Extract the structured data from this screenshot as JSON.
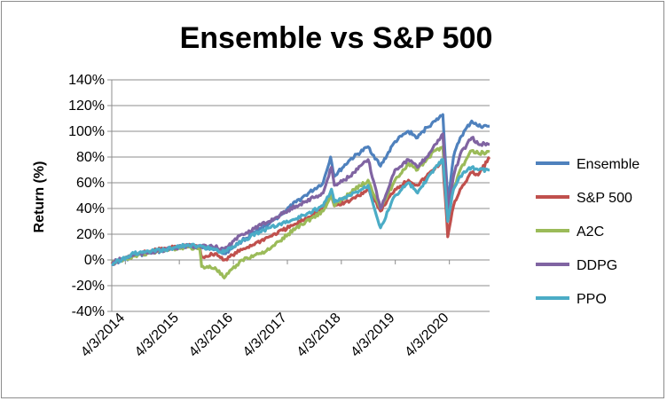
{
  "chart_data": {
    "type": "line",
    "title": "Ensemble vs S&P 500",
    "xlabel": "",
    "ylabel": "Return (%)",
    "ylim": [
      -40,
      140
    ],
    "yticks": [
      -40,
      -20,
      0,
      20,
      40,
      60,
      80,
      100,
      120,
      140
    ],
    "ytick_labels": [
      "-40%",
      "-20%",
      "0%",
      "20%",
      "40%",
      "60%",
      "80%",
      "100%",
      "120%",
      "140%"
    ],
    "xlim": [
      "2014-01-01",
      "2020-12-31"
    ],
    "xticks": [
      "2014-04-03",
      "2015-04-03",
      "2016-04-03",
      "2017-04-03",
      "2018-04-03",
      "2019-04-03",
      "2020-04-03"
    ],
    "xtick_labels": [
      "4/3/2014",
      "4/3/2015",
      "4/3/2016",
      "4/3/2017",
      "4/3/2018",
      "4/3/2019",
      "4/3/2020"
    ],
    "grid": "horizontal",
    "legend_position": "right",
    "series": [
      {
        "name": "Ensemble",
        "color": "#4F81BD",
        "x": [
          "2014-01-01",
          "2014-06-01",
          "2015-01-01",
          "2015-06-01",
          "2015-12-01",
          "2016-02-01",
          "2016-06-01",
          "2016-12-01",
          "2017-06-01",
          "2017-12-01",
          "2018-01-20",
          "2018-02-15",
          "2018-06-01",
          "2018-10-01",
          "2018-12-24",
          "2019-04-01",
          "2019-07-01",
          "2019-09-01",
          "2019-11-01",
          "2019-12-31",
          "2020-02-19",
          "2020-03-23",
          "2020-05-01",
          "2020-06-15",
          "2020-09-01",
          "2020-10-15",
          "2020-12-31"
        ],
        "y": [
          -3,
          3,
          8,
          11,
          9,
          5,
          15,
          28,
          45,
          60,
          80,
          65,
          78,
          88,
          73,
          92,
          100,
          95,
          103,
          108,
          113,
          45,
          80,
          95,
          108,
          104,
          104
        ]
      },
      {
        "name": "S&P 500",
        "color": "#C0504D",
        "x": [
          "2014-01-01",
          "2014-06-01",
          "2015-01-01",
          "2015-06-01",
          "2015-08-20",
          "2015-09-01",
          "2015-12-01",
          "2016-02-01",
          "2016-06-01",
          "2016-12-01",
          "2017-06-01",
          "2017-12-01",
          "2018-01-26",
          "2018-02-15",
          "2018-06-01",
          "2018-10-01",
          "2018-12-24",
          "2019-04-01",
          "2019-07-01",
          "2019-09-01",
          "2019-11-01",
          "2019-12-31",
          "2020-02-19",
          "2020-03-23",
          "2020-05-01",
          "2020-06-15",
          "2020-09-01",
          "2020-10-15",
          "2020-12-31"
        ],
        "y": [
          -3,
          4,
          9,
          11,
          10,
          2,
          5,
          0,
          8,
          18,
          28,
          40,
          50,
          42,
          46,
          55,
          38,
          55,
          62,
          58,
          65,
          72,
          76,
          18,
          42,
          55,
          68,
          66,
          80
        ]
      },
      {
        "name": "A2C",
        "color": "#9BBB59",
        "x": [
          "2014-01-01",
          "2014-06-01",
          "2015-01-01",
          "2015-06-01",
          "2015-08-20",
          "2015-09-01",
          "2015-12-01",
          "2016-02-01",
          "2016-06-01",
          "2016-12-01",
          "2017-06-01",
          "2017-12-01",
          "2018-01-26",
          "2018-02-15",
          "2018-06-01",
          "2018-10-01",
          "2018-12-24",
          "2019-04-01",
          "2019-07-01",
          "2019-09-01",
          "2019-11-01",
          "2019-12-31",
          "2020-02-19",
          "2020-03-23",
          "2020-05-01",
          "2020-06-15",
          "2020-09-01",
          "2020-10-15",
          "2020-12-31"
        ],
        "y": [
          -2,
          3,
          8,
          10,
          8,
          -5,
          -6,
          -14,
          0,
          8,
          25,
          38,
          50,
          42,
          52,
          62,
          40,
          62,
          75,
          70,
          78,
          85,
          88,
          35,
          55,
          70,
          85,
          83,
          84
        ]
      },
      {
        "name": "DDPG",
        "color": "#8064A2",
        "x": [
          "2014-01-01",
          "2014-06-01",
          "2015-01-01",
          "2015-06-01",
          "2015-12-01",
          "2016-02-01",
          "2016-06-01",
          "2016-12-01",
          "2017-06-01",
          "2017-12-01",
          "2018-01-26",
          "2018-02-15",
          "2018-06-01",
          "2018-10-01",
          "2018-12-24",
          "2019-04-01",
          "2019-07-01",
          "2019-09-01",
          "2019-11-01",
          "2019-12-31",
          "2020-02-19",
          "2020-03-23",
          "2020-05-01",
          "2020-06-15",
          "2020-09-01",
          "2020-10-15",
          "2020-12-31"
        ],
        "y": [
          -2,
          4,
          8,
          11,
          10,
          8,
          20,
          30,
          42,
          52,
          72,
          58,
          65,
          78,
          40,
          70,
          78,
          72,
          80,
          90,
          98,
          40,
          65,
          82,
          95,
          90,
          90
        ]
      },
      {
        "name": "PPO",
        "color": "#4BACC6",
        "x": [
          "2014-01-01",
          "2014-06-01",
          "2015-01-01",
          "2015-06-01",
          "2015-12-01",
          "2016-02-01",
          "2016-06-01",
          "2016-12-01",
          "2017-06-01",
          "2017-12-01",
          "2018-01-26",
          "2018-02-15",
          "2018-06-01",
          "2018-10-01",
          "2018-12-24",
          "2019-04-01",
          "2019-07-01",
          "2019-09-01",
          "2019-11-01",
          "2019-12-31",
          "2020-02-19",
          "2020-03-23",
          "2020-05-01",
          "2020-06-15",
          "2020-09-01",
          "2020-10-15",
          "2020-12-31"
        ],
        "y": [
          -3,
          5,
          8,
          12,
          8,
          6,
          15,
          25,
          32,
          42,
          55,
          45,
          50,
          58,
          25,
          50,
          60,
          52,
          62,
          72,
          78,
          30,
          55,
          65,
          72,
          70,
          70
        ]
      }
    ]
  }
}
